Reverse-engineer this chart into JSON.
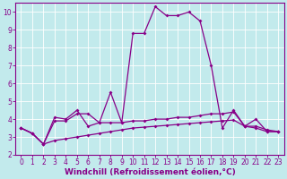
{
  "title": "",
  "xlabel": "Windchill (Refroidissement éolien,°C)",
  "ylabel": "",
  "background_color": "#c2eaec",
  "grid_color": "#aad8dc",
  "line_color": "#880088",
  "xlim": [
    -0.5,
    23.5
  ],
  "ylim": [
    2,
    10.5
  ],
  "xticks": [
    0,
    1,
    2,
    3,
    4,
    5,
    6,
    7,
    8,
    9,
    10,
    11,
    12,
    13,
    14,
    15,
    16,
    17,
    18,
    19,
    20,
    21,
    22,
    23
  ],
  "yticks": [
    2,
    3,
    4,
    5,
    6,
    7,
    8,
    9,
    10
  ],
  "line1_x": [
    0,
    1,
    2,
    3,
    4,
    5,
    6,
    7,
    8,
    9,
    10,
    11,
    12,
    13,
    14,
    15,
    16,
    17,
    18,
    19,
    20,
    21,
    22,
    23
  ],
  "line1_y": [
    3.5,
    3.2,
    2.6,
    4.1,
    4.0,
    4.5,
    3.6,
    3.8,
    5.5,
    3.8,
    8.8,
    8.8,
    10.3,
    9.8,
    9.8,
    10.0,
    9.5,
    7.0,
    3.5,
    4.5,
    3.6,
    4.0,
    3.3,
    3.3
  ],
  "line2_x": [
    0,
    1,
    2,
    3,
    4,
    5,
    6,
    7,
    8,
    9,
    10,
    11,
    12,
    13,
    14,
    15,
    16,
    17,
    18,
    19,
    20,
    21,
    22,
    23
  ],
  "line2_y": [
    3.5,
    3.2,
    2.6,
    3.9,
    3.9,
    4.3,
    4.3,
    3.8,
    3.8,
    3.8,
    3.9,
    3.9,
    4.0,
    4.0,
    4.1,
    4.1,
    4.2,
    4.3,
    4.3,
    4.4,
    3.6,
    3.6,
    3.4,
    3.3
  ],
  "line3_x": [
    0,
    1,
    2,
    3,
    4,
    5,
    6,
    7,
    8,
    9,
    10,
    11,
    12,
    13,
    14,
    15,
    16,
    17,
    18,
    19,
    20,
    21,
    22,
    23
  ],
  "line3_y": [
    3.5,
    3.2,
    2.6,
    2.8,
    2.9,
    3.0,
    3.1,
    3.2,
    3.3,
    3.4,
    3.5,
    3.55,
    3.6,
    3.65,
    3.7,
    3.75,
    3.8,
    3.85,
    3.9,
    3.95,
    3.6,
    3.5,
    3.3,
    3.3
  ],
  "marker": "D",
  "marker_size": 2.0,
  "line_width": 0.9,
  "tick_fontsize": 5.5,
  "label_fontsize": 6.5,
  "spine_color": "#880088"
}
